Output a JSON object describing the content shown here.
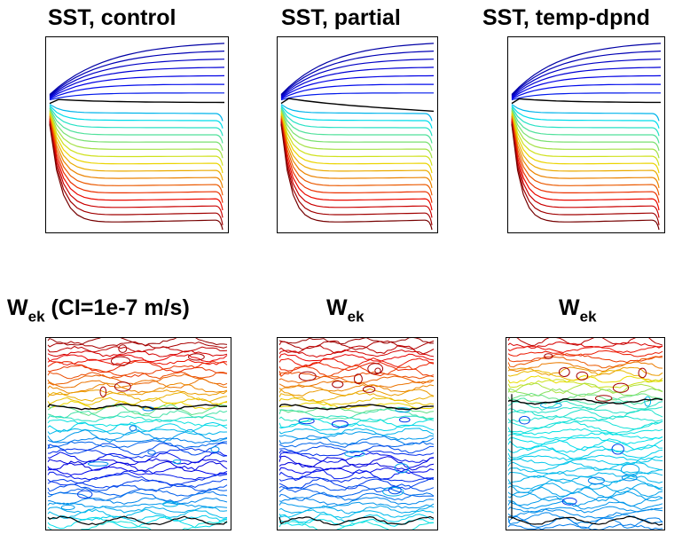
{
  "panels": [
    {
      "title": "SST, control"
    },
    {
      "title": "SST, partial"
    },
    {
      "title": "SST, temp-dpnd"
    },
    {
      "title_main": "W",
      "title_sub": "ek",
      "title_suffix": " (CI=1e-7 m/s)"
    },
    {
      "title_main": "W",
      "title_sub": "ek",
      "title_suffix": ""
    },
    {
      "title_main": "W",
      "title_sub": "ek",
      "title_suffix": ""
    }
  ]
}
